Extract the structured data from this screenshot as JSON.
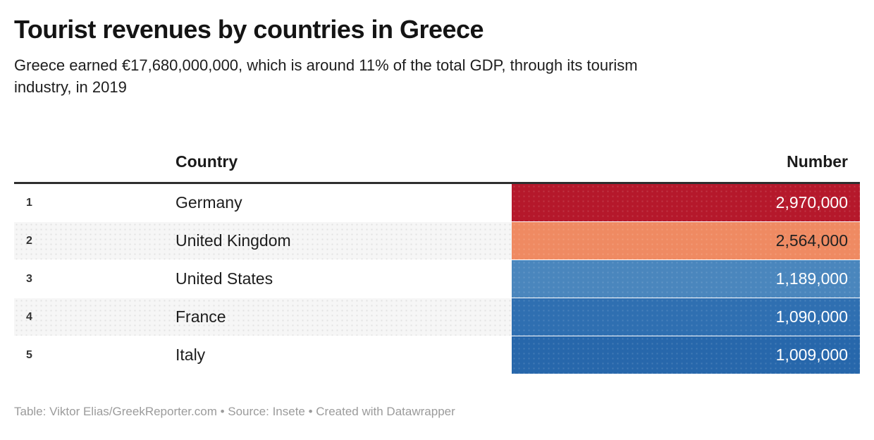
{
  "page": {
    "title": "Tourist revenues by countries in Greece",
    "subtitle": "Greece earned €17,680,000,000, which is around 11% of the total GDP, through its tourism\nindustry, in 2019",
    "footer": "Table: Viktor Elias/GreekReporter.com • Source: Insete • Created with Datawrapper"
  },
  "table": {
    "columns": {
      "country": "Country",
      "number": "Number"
    },
    "rows": [
      {
        "rank": "1",
        "country": "Germany",
        "number": "2,970,000",
        "bar_color": "#b5182b",
        "text_color": "#ffffff"
      },
      {
        "rank": "2",
        "country": "United Kingdom",
        "number": "2,564,000",
        "bar_color": "#ef8a62",
        "text_color": "#222222"
      },
      {
        "rank": "3",
        "country": "United States",
        "number": "1,189,000",
        "bar_color": "#4a86bd",
        "text_color": "#ffffff"
      },
      {
        "rank": "4",
        "country": "France",
        "number": "1,090,000",
        "bar_color": "#2f6fb1",
        "text_color": "#ffffff"
      },
      {
        "rank": "5",
        "country": "Italy",
        "number": "1,009,000",
        "bar_color": "#2767ab",
        "text_color": "#ffffff"
      }
    ]
  },
  "chart_data": {
    "type": "table",
    "title": "Tourist revenues by countries in Greece",
    "subtitle": "Greece earned €17,680,000,000, which is around 11% of the total GDP, through its tourism industry, in 2019",
    "columns": [
      "Country",
      "Number"
    ],
    "categories": [
      "Germany",
      "United Kingdom",
      "United States",
      "France",
      "Italy"
    ],
    "values": [
      2970000,
      2564000,
      1189000,
      1090000,
      1009000
    ],
    "cell_colors": [
      "#b5182b",
      "#ef8a62",
      "#4a86bd",
      "#2f6fb1",
      "#2767ab"
    ],
    "legend_position": "none",
    "notes": "Number column rendered as full-width heatmap-colored cells, diverging red-blue palette"
  }
}
